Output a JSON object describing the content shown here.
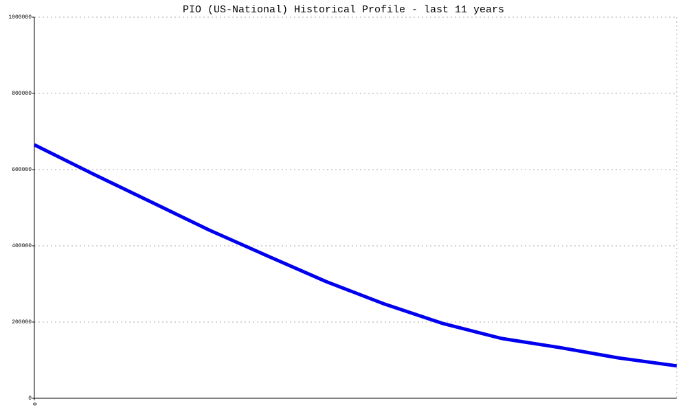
{
  "chart_data": {
    "type": "line",
    "title": "PIO (US-National) Historical Profile - last 11 years",
    "x": [
      0,
      1,
      2,
      3,
      4,
      5,
      6,
      7,
      8,
      9,
      10,
      11
    ],
    "series": [
      {
        "name": "PIO",
        "color": "#0000ee",
        "values": [
          665000,
          589000,
          515000,
          441000,
          373000,
          306000,
          247000,
          196000,
          157000,
          133000,
          106000,
          85000
        ]
      }
    ],
    "xlim": [
      0,
      11
    ],
    "xticks": [
      0
    ],
    "ylim": [
      0,
      1000000
    ],
    "yticks": [
      0,
      200000,
      400000,
      600000,
      800000,
      1000000
    ],
    "grid": true
  }
}
